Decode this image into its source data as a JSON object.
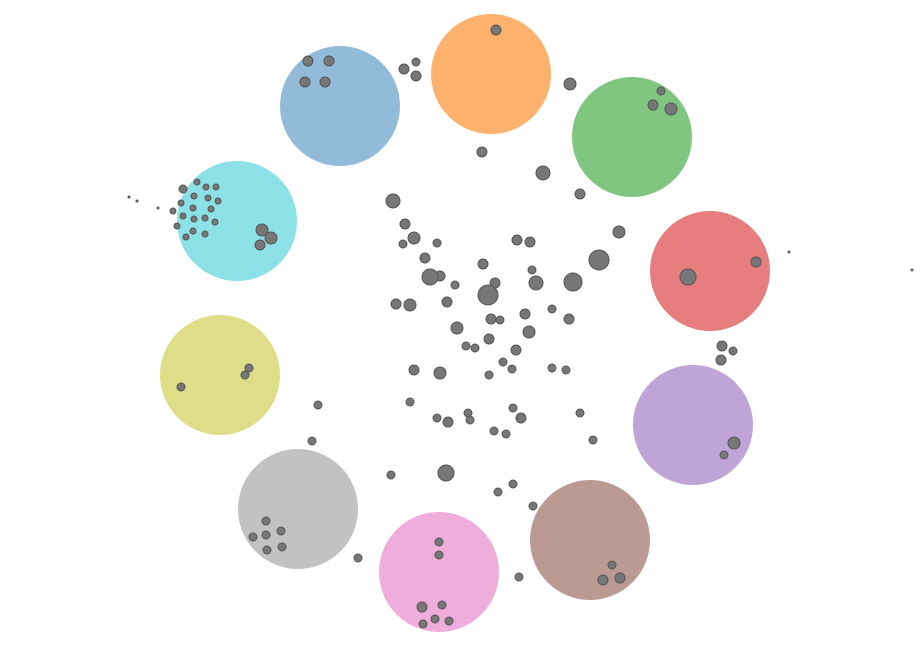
{
  "diagram": {
    "type": "cluster-bubble-diagram",
    "node_color": "#777777",
    "node_stroke": "#555555",
    "clusters": [
      {
        "id": "orange",
        "color": "#ff7f0e",
        "nodes": 1
      },
      {
        "id": "green",
        "color": "#2ca02c",
        "nodes": 3
      },
      {
        "id": "red",
        "color": "#d62728",
        "nodes": 2
      },
      {
        "id": "purple",
        "color": "#9467bd",
        "nodes": 2
      },
      {
        "id": "brown",
        "color": "#8c564b",
        "nodes": 3
      },
      {
        "id": "pink",
        "color": "#e377c2",
        "nodes": 7
      },
      {
        "id": "gray",
        "color": "#999999",
        "nodes": 7
      },
      {
        "id": "olive",
        "color": "#c8c83a",
        "nodes": 3
      },
      {
        "id": "cyan",
        "color": "#3fcdd6",
        "nodes": 25
      },
      {
        "id": "blue",
        "color": "#4a8ec2",
        "nodes": 4
      }
    ]
  }
}
